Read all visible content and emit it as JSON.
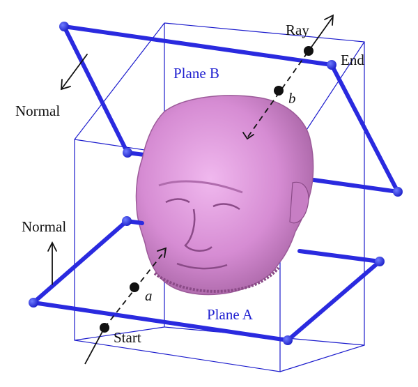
{
  "labels": {
    "ray": "Ray",
    "end": "End",
    "start": "Start",
    "plane_b": "Plane B",
    "plane_a": "Plane A",
    "normal_top": "Normal",
    "normal_bottom": "Normal",
    "point_a": "a",
    "point_b": "b"
  },
  "colors": {
    "plane_frame": "#2a2adf",
    "bounding_box": "#1a1acc",
    "head": "#d98fd6",
    "head_shadow": "#a560a3",
    "ink": "#111111",
    "label_blue": "#1f1fd0"
  }
}
